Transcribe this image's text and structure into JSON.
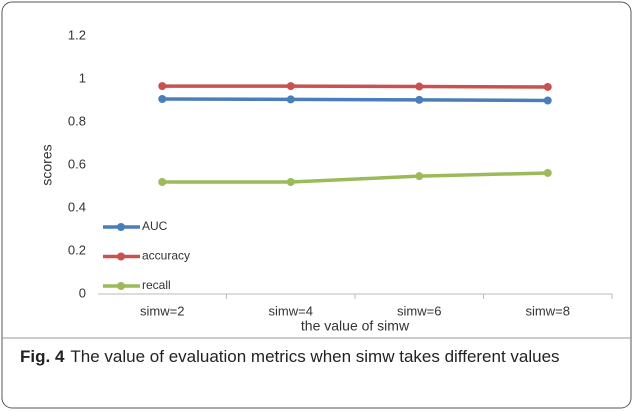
{
  "chart_data": {
    "type": "line",
    "categories": [
      "simw=2",
      "simw=4",
      "simw=6",
      "simw=8"
    ],
    "series": [
      {
        "name": "AUC",
        "color": "#4a7ebb",
        "values": [
          0.907,
          0.905,
          0.903,
          0.9
        ]
      },
      {
        "name": "accuracy",
        "color": "#c9524e",
        "values": [
          0.967,
          0.967,
          0.965,
          0.963
        ]
      },
      {
        "name": "recall",
        "color": "#9bbb59",
        "values": [
          0.521,
          0.521,
          0.548,
          0.563
        ]
      }
    ],
    "ylim": [
      0,
      1.2
    ],
    "yticks": [
      0,
      0.2,
      0.4,
      0.6,
      0.8,
      1,
      1.2
    ],
    "xlabel": "the value of simw",
    "ylabel": "scores",
    "legend": "left",
    "grid": false,
    "caption_label": "Fig. 4",
    "caption": "The value of evaluation metrics when simw takes different values"
  }
}
